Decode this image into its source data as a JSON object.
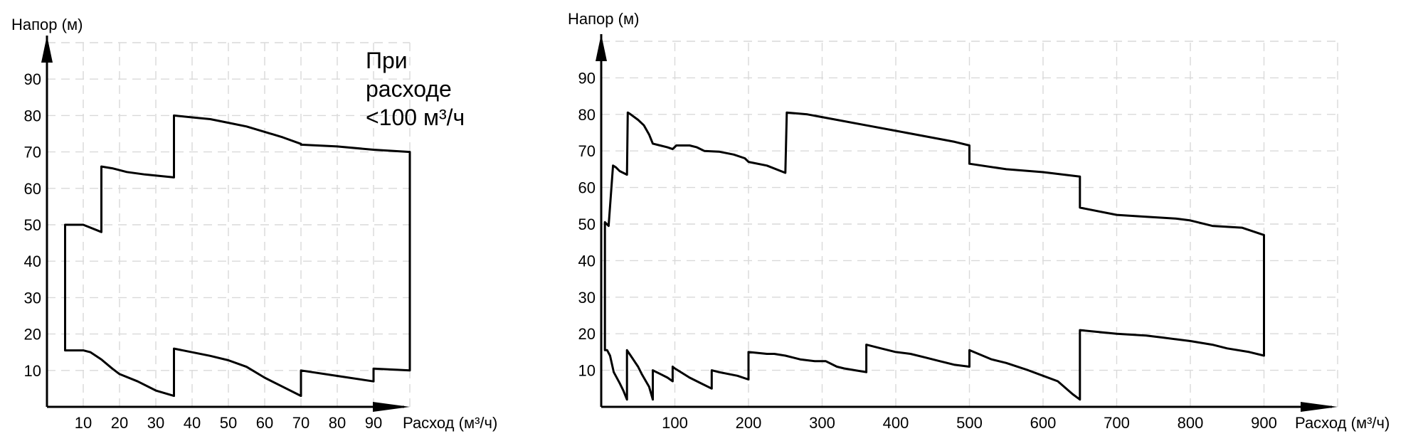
{
  "chart_data": [
    {
      "type": "area",
      "ylabel": "Напор (м)",
      "xlabel": "Расход (м³/ч)",
      "note": [
        "При",
        "расходе",
        "<100 м³/ч"
      ],
      "xlim": [
        0,
        100
      ],
      "ylim": [
        0,
        100
      ],
      "xticks": [
        10,
        20,
        30,
        40,
        50,
        60,
        70,
        80,
        90
      ],
      "yticks": [
        10,
        20,
        30,
        40,
        50,
        60,
        70,
        80,
        90
      ],
      "grid": true,
      "series": [
        {
          "values": [
            [
              5,
              50
            ],
            [
              10,
              50
            ],
            [
              15,
              48
            ],
            [
              15,
              66
            ],
            [
              18,
              65.5
            ],
            [
              22,
              64.5
            ],
            [
              27,
              63.8
            ],
            [
              35,
              63
            ],
            [
              35,
              80
            ],
            [
              40,
              79.5
            ],
            [
              45,
              79
            ],
            [
              50,
              78
            ],
            [
              55,
              77
            ],
            [
              60,
              75.5
            ],
            [
              65,
              74
            ],
            [
              70,
              72.2
            ],
            [
              70,
              72
            ],
            [
              80,
              71.5
            ],
            [
              90,
              70.6
            ],
            [
              100,
              70
            ],
            [
              100,
              10
            ],
            [
              90,
              10.5
            ],
            [
              90,
              7
            ],
            [
              80,
              8.5
            ],
            [
              70,
              10
            ],
            [
              70,
              3
            ],
            [
              65,
              5.5
            ],
            [
              60,
              8
            ],
            [
              55,
              11
            ],
            [
              50,
              12.8
            ],
            [
              45,
              14
            ],
            [
              40,
              15
            ],
            [
              35,
              16
            ],
            [
              35,
              3
            ],
            [
              30,
              4.5
            ],
            [
              25,
              7
            ],
            [
              20,
              9
            ],
            [
              18,
              10.5
            ],
            [
              15,
              13
            ],
            [
              12,
              15
            ],
            [
              10,
              15.5
            ],
            [
              5,
              15.5
            ],
            [
              5,
              50
            ]
          ]
        }
      ]
    },
    {
      "type": "area",
      "ylabel": "Напор (м)",
      "xlabel": "Расход (м³/ч)",
      "xlim": [
        0,
        1000
      ],
      "ylim": [
        0,
        100
      ],
      "xticks": [
        100,
        200,
        300,
        400,
        500,
        600,
        700,
        800,
        900
      ],
      "yticks": [
        10,
        20,
        30,
        40,
        50,
        60,
        70,
        80,
        90
      ],
      "grid": true,
      "series": [
        {
          "values": [
            [
              5,
              50.5
            ],
            [
              10,
              49.5
            ],
            [
              16,
              66
            ],
            [
              20,
              65.5
            ],
            [
              25,
              64.5
            ],
            [
              35,
              63.5
            ],
            [
              36,
              80.5
            ],
            [
              40,
              80
            ],
            [
              50,
              78.5
            ],
            [
              58,
              77
            ],
            [
              65,
              74.5
            ],
            [
              70,
              72
            ],
            [
              80,
              71.5
            ],
            [
              90,
              71
            ],
            [
              97,
              70.5
            ],
            [
              102,
              71.5
            ],
            [
              120,
              71.5
            ],
            [
              130,
              71
            ],
            [
              140,
              70
            ],
            [
              160,
              69.8
            ],
            [
              180,
              69
            ],
            [
              195,
              68
            ],
            [
              200,
              67
            ],
            [
              225,
              66
            ],
            [
              250,
              64
            ],
            [
              252,
              80.5
            ],
            [
              280,
              80
            ],
            [
              320,
              78.5
            ],
            [
              360,
              77
            ],
            [
              400,
              75.5
            ],
            [
              440,
              74
            ],
            [
              480,
              72.5
            ],
            [
              500,
              71.5
            ],
            [
              500,
              66.5
            ],
            [
              550,
              65
            ],
            [
              600,
              64.2
            ],
            [
              650,
              63
            ],
            [
              650,
              54.5
            ],
            [
              700,
              52.5
            ],
            [
              740,
              52
            ],
            [
              780,
              51.5
            ],
            [
              800,
              51
            ],
            [
              830,
              49.5
            ],
            [
              870,
              49
            ],
            [
              900,
              47
            ],
            [
              900,
              14
            ],
            [
              880,
              15
            ],
            [
              850,
              16
            ],
            [
              830,
              17
            ],
            [
              800,
              18
            ],
            [
              780,
              18.5
            ],
            [
              760,
              19
            ],
            [
              740,
              19.5
            ],
            [
              700,
              20
            ],
            [
              650,
              21
            ],
            [
              650,
              2
            ],
            [
              640,
              3.5
            ],
            [
              620,
              7
            ],
            [
              600,
              8.5
            ],
            [
              580,
              10
            ],
            [
              550,
              12
            ],
            [
              530,
              13
            ],
            [
              500,
              15.5
            ],
            [
              500,
              11
            ],
            [
              480,
              11.5
            ],
            [
              460,
              12.5
            ],
            [
              440,
              13.5
            ],
            [
              420,
              14.5
            ],
            [
              400,
              15
            ],
            [
              380,
              16
            ],
            [
              360,
              17
            ],
            [
              360,
              9.5
            ],
            [
              345,
              10
            ],
            [
              330,
              10.5
            ],
            [
              320,
              11
            ],
            [
              305,
              12.5
            ],
            [
              290,
              12.5
            ],
            [
              270,
              13
            ],
            [
              260,
              13.5
            ],
            [
              250,
              14
            ],
            [
              235,
              14.5
            ],
            [
              225,
              14.5
            ],
            [
              200,
              15
            ],
            [
              200,
              7.5
            ],
            [
              185,
              8.5
            ],
            [
              160,
              9.5
            ],
            [
              150,
              10
            ],
            [
              150,
              5
            ],
            [
              135,
              6.5
            ],
            [
              120,
              8
            ],
            [
              100,
              10.5
            ],
            [
              97,
              11
            ],
            [
              97,
              7
            ],
            [
              90,
              8
            ],
            [
              80,
              9
            ],
            [
              70,
              10
            ],
            [
              70,
              2
            ],
            [
              65,
              5.5
            ],
            [
              55,
              9
            ],
            [
              50,
              11
            ],
            [
              40,
              14
            ],
            [
              35,
              15.5
            ],
            [
              35,
              2
            ],
            [
              30,
              4.5
            ],
            [
              25,
              6.5
            ],
            [
              17,
              9.5
            ],
            [
              12,
              14
            ],
            [
              8,
              15.5
            ],
            [
              5,
              15.5
            ],
            [
              5,
              50.5
            ]
          ]
        }
      ]
    }
  ]
}
